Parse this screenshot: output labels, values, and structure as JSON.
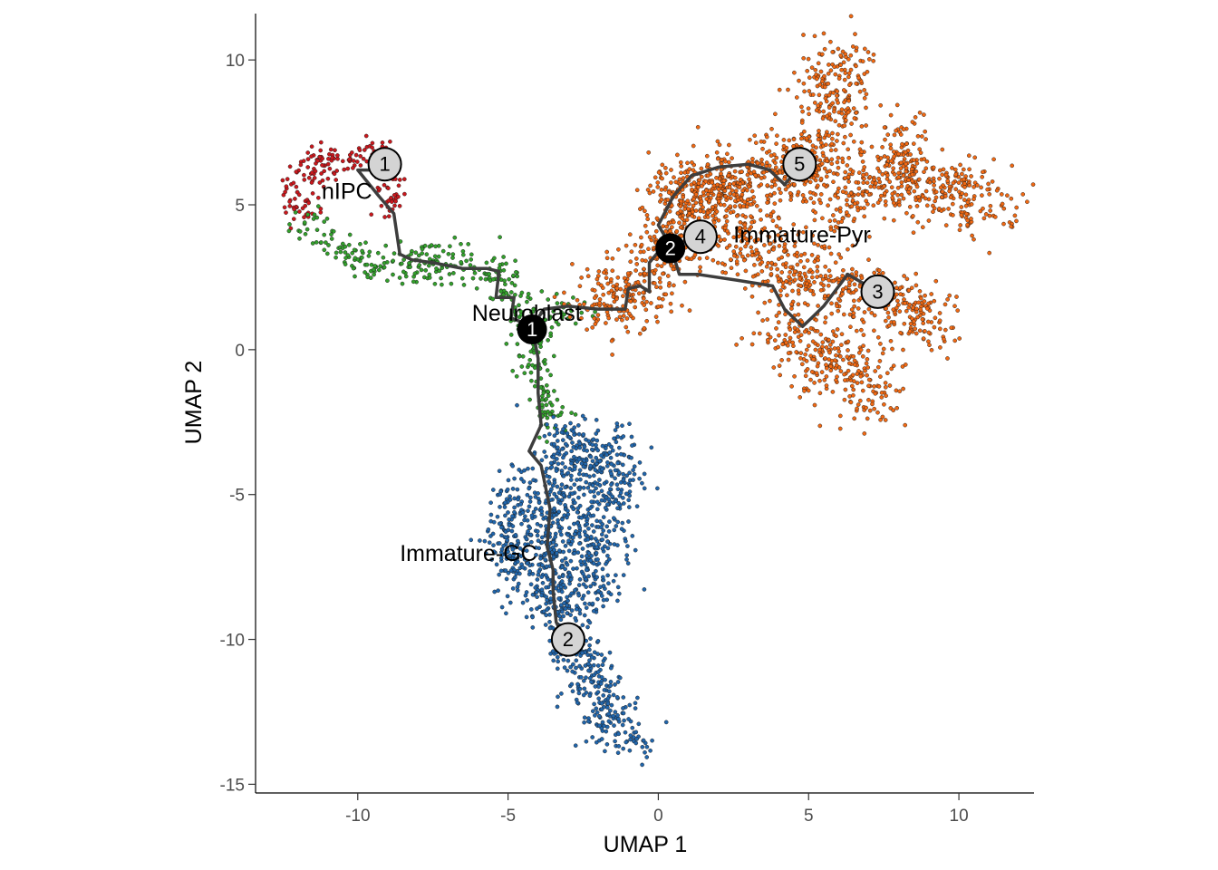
{
  "chart_data": {
    "type": "scatter",
    "xlabel": "UMAP 1",
    "ylabel": "UMAP 2",
    "xlim": [
      -13.4,
      12.5
    ],
    "ylim": [
      -15.3,
      11.6
    ],
    "xticks": [
      -10,
      -5,
      0,
      5,
      10
    ],
    "yticks": [
      -15,
      -10,
      -5,
      0,
      5,
      10
    ],
    "x_tick_labels": [
      "-10",
      "-5",
      "0",
      "5",
      "10"
    ],
    "y_tick_labels": [
      "-15",
      "-10",
      "-5",
      "0",
      "5",
      "10"
    ],
    "grid": false,
    "legend": "none",
    "clusters": [
      {
        "name": "nIPC",
        "color": "#cb181d",
        "label": {
          "x": -11.2,
          "y": 5.2
        }
      },
      {
        "name": "Neuroblast",
        "color": "#33a02c",
        "label": {
          "x": -6.2,
          "y": 1.0
        }
      },
      {
        "name": "Immature-Pyr",
        "color": "#f16913",
        "label": {
          "x": 2.5,
          "y": 3.7
        }
      },
      {
        "name": "Immature-GC",
        "color": "#2166ac",
        "label": {
          "x": -8.6,
          "y": -7.3
        }
      }
    ],
    "trajectory": [
      [
        [
          -9.0,
          6.2
        ],
        [
          -10.0,
          6.2
        ],
        [
          -9.3,
          5.3
        ],
        [
          -8.8,
          4.7
        ],
        [
          -8.6,
          3.3
        ],
        [
          -8.2,
          3.1
        ],
        [
          -7.5,
          3.0
        ],
        [
          -6.5,
          2.8
        ],
        [
          -5.7,
          2.8
        ],
        [
          -5.3,
          2.7
        ],
        [
          -5.4,
          1.8
        ],
        [
          -4.8,
          1.8
        ],
        [
          -4.9,
          1.1
        ],
        [
          -4.2,
          0.8
        ],
        [
          -3.8,
          1.4
        ],
        [
          -3.0,
          1.5
        ],
        [
          -2.0,
          1.4
        ],
        [
          -1.1,
          1.4
        ],
        [
          -1.0,
          2.1
        ],
        [
          -0.6,
          2.2
        ],
        [
          -0.3,
          2.0
        ],
        [
          -0.3,
          3.0
        ],
        [
          0.1,
          3.5
        ],
        [
          0.4,
          3.6
        ]
      ],
      [
        [
          -4.2,
          0.8
        ],
        [
          -4.0,
          -0.3
        ],
        [
          -4.0,
          -1.5
        ],
        [
          -3.9,
          -2.6
        ],
        [
          -4.3,
          -3.5
        ],
        [
          -3.9,
          -4.0
        ],
        [
          -3.6,
          -5.5
        ],
        [
          -3.7,
          -6.8
        ],
        [
          -3.5,
          -7.6
        ],
        [
          -3.5,
          -8.3
        ],
        [
          -3.4,
          -9.4
        ],
        [
          -3.2,
          -9.8
        ],
        [
          -3.1,
          -10.0
        ]
      ],
      [
        [
          0.4,
          3.6
        ],
        [
          0.7,
          2.6
        ],
        [
          1.3,
          2.6
        ],
        [
          2.6,
          2.4
        ],
        [
          3.8,
          2.2
        ],
        [
          4.2,
          1.4
        ],
        [
          4.8,
          0.8
        ],
        [
          5.1,
          1.1
        ],
        [
          5.5,
          1.5
        ],
        [
          6.3,
          2.6
        ],
        [
          6.8,
          2.3
        ],
        [
          7.2,
          2.0
        ]
      ],
      [
        [
          0.4,
          3.6
        ],
        [
          0.0,
          4.3
        ],
        [
          0.5,
          5.3
        ],
        [
          1.1,
          6.0
        ],
        [
          2.0,
          6.3
        ],
        [
          3.0,
          6.4
        ],
        [
          3.7,
          6.2
        ],
        [
          4.2,
          5.7
        ],
        [
          4.7,
          6.3
        ],
        [
          4.9,
          6.4
        ]
      ]
    ],
    "nodes": [
      {
        "label": "1",
        "x": -9.1,
        "y": 6.4,
        "kind": "outcome"
      },
      {
        "label": "1",
        "x": -4.2,
        "y": 0.7,
        "kind": "branch"
      },
      {
        "label": "2",
        "x": -3.0,
        "y": -10.0,
        "kind": "outcome"
      },
      {
        "label": "2",
        "x": 0.4,
        "y": 3.5,
        "kind": "branch"
      },
      {
        "label": "3",
        "x": 7.3,
        "y": 2.0,
        "kind": "outcome"
      },
      {
        "label": "4",
        "x": 1.4,
        "y": 3.9,
        "kind": "outcome"
      },
      {
        "label": "5",
        "x": 4.7,
        "y": 6.4,
        "kind": "outcome"
      }
    ]
  }
}
